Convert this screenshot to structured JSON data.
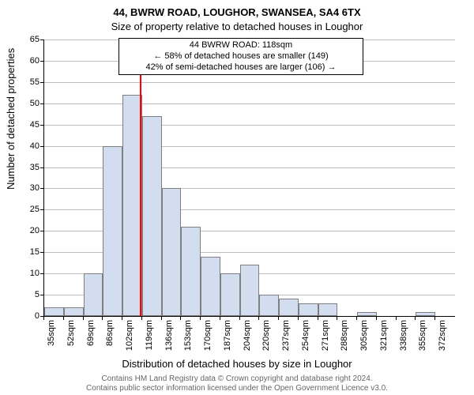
{
  "title_line1": "44, BWRW ROAD, LOUGHOR, SWANSEA, SA4 6TX",
  "title_line2": "Size of property relative to detached houses in Loughor",
  "annotation": {
    "line1": "44 BWRW ROAD: 118sqm",
    "line2": "← 58% of detached houses are smaller (149)",
    "line3": "42% of semi-detached houses are larger (106) →"
  },
  "y_axis": {
    "label": "Number of detached properties",
    "min": 0,
    "max": 65,
    "ticks": [
      0,
      5,
      10,
      15,
      20,
      25,
      30,
      35,
      40,
      45,
      50,
      55,
      60,
      65
    ]
  },
  "x_axis": {
    "label": "Distribution of detached houses by size in Loughor",
    "categories": [
      "35sqm",
      "52sqm",
      "69sqm",
      "86sqm",
      "102sqm",
      "119sqm",
      "136sqm",
      "153sqm",
      "170sqm",
      "187sqm",
      "204sqm",
      "220sqm",
      "237sqm",
      "254sqm",
      "271sqm",
      "288sqm",
      "305sqm",
      "321sqm",
      "338sqm",
      "355sqm",
      "372sqm"
    ]
  },
  "chart": {
    "type": "histogram",
    "bar_color": "#d2def0",
    "bar_border": "#7f7f7f",
    "grid_color": "#bfbfbf",
    "background_color": "#ffffff",
    "values": [
      2,
      2,
      10,
      40,
      52,
      47,
      30,
      21,
      14,
      10,
      12,
      5,
      4,
      3,
      3,
      0,
      1,
      0,
      0,
      1,
      0
    ],
    "marker": {
      "position_value": 118,
      "x_min": 35,
      "x_step": 17,
      "color": "#ff0000"
    }
  },
  "footer": {
    "line1": "Contains HM Land Registry data © Crown copyright and database right 2024.",
    "line2": "Contains public sector information licensed under the Open Government Licence v3.0."
  }
}
